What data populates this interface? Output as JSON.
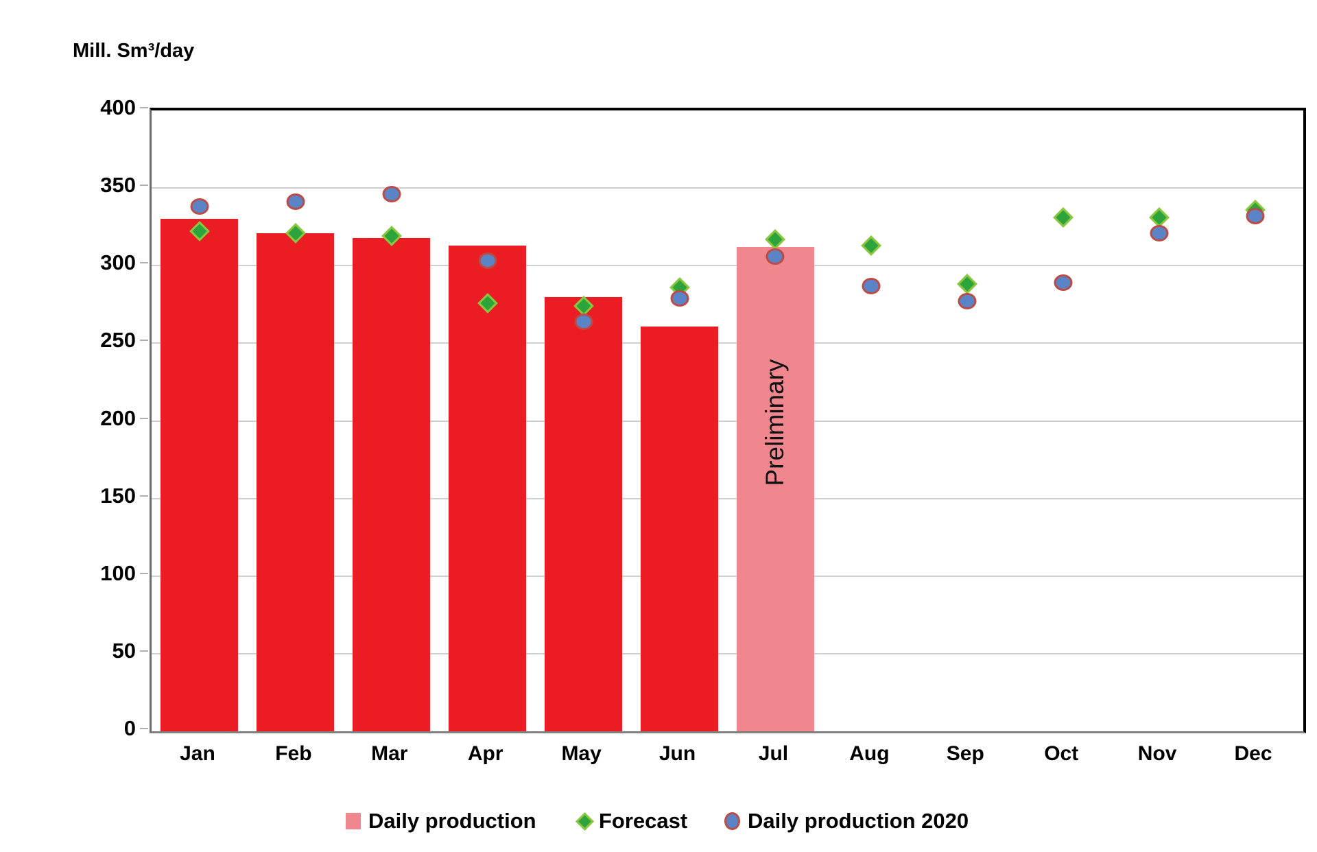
{
  "y_axis": {
    "label": "Mill. Sm³/day",
    "ticks": [
      400,
      350,
      300,
      250,
      200,
      150,
      100,
      50,
      0
    ]
  },
  "x_axis": {
    "categories": [
      "Jan",
      "Feb",
      "Mar",
      "Apr",
      "May",
      "Jun",
      "Jul",
      "Aug",
      "Sep",
      "Oct",
      "Nov",
      "Dec"
    ]
  },
  "annotations": {
    "preliminary_label": "Preliminary",
    "preliminary_month": "Jul"
  },
  "legend": {
    "items": [
      {
        "label": "Daily production",
        "marker": "square"
      },
      {
        "label": "Forecast",
        "marker": "diamond"
      },
      {
        "label": "Daily production 2020",
        "marker": "circle"
      }
    ]
  },
  "colors": {
    "bar_red": "#EB1C24",
    "bar_preliminary_pink": "#F0868E",
    "forecast_green": "#2DA33C",
    "forecast_green_border": "#8CC63F",
    "prod2020_blue": "#5B84C6",
    "prod2020_border": "#BC4B45",
    "gridline": "#CFCFCF",
    "tick": "#AFAFAF",
    "text": "#000000"
  },
  "chart_data": {
    "type": "bar",
    "title": "",
    "ylabel": "Mill. Sm³/day",
    "xlabel": "",
    "ylim": [
      0,
      400
    ],
    "ytick_step": 50,
    "grid": "horizontal",
    "legend_position": "bottom",
    "categories": [
      "Jan",
      "Feb",
      "Mar",
      "Apr",
      "May",
      "Jun",
      "Jul",
      "Aug",
      "Sep",
      "Oct",
      "Nov",
      "Dec"
    ],
    "series": [
      {
        "name": "Daily production",
        "type": "bar",
        "values": [
          330,
          321,
          318,
          313,
          280,
          261,
          312,
          null,
          null,
          null,
          null,
          null
        ],
        "preliminary": [
          false,
          false,
          false,
          false,
          false,
          false,
          true,
          false,
          false,
          false,
          false,
          false
        ]
      },
      {
        "name": "Forecast",
        "type": "scatter",
        "marker": "diamond",
        "values": [
          322,
          321,
          319,
          276,
          274,
          286,
          317,
          313,
          288,
          331,
          331,
          336
        ]
      },
      {
        "name": "Daily production 2020",
        "type": "scatter",
        "marker": "circle",
        "values": [
          338,
          341,
          346,
          303,
          264,
          279,
          306,
          287,
          277,
          289,
          321,
          332
        ]
      }
    ]
  }
}
